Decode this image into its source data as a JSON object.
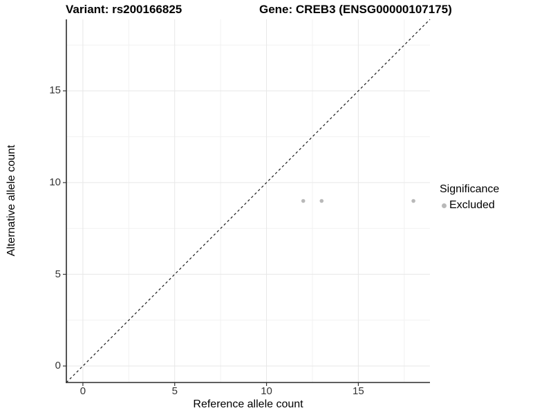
{
  "titles": {
    "variant": "Variant: rs200166825",
    "gene": "Gene: CREB3 (ENSG00000107175)"
  },
  "legend": {
    "title": "Significance",
    "items": [
      {
        "label": "Excluded",
        "color": "#b9b9b9"
      }
    ]
  },
  "chart_data": {
    "type": "scatter",
    "title": "Variant: rs200166825   Gene: CREB3 (ENSG00000107175)",
    "xlabel": "Reference allele count",
    "ylabel": "Alternative allele count",
    "series": [
      {
        "name": "Excluded",
        "color": "#b9b9b9",
        "points": [
          {
            "x": 12,
            "y": 9
          },
          {
            "x": 13,
            "y": 9
          },
          {
            "x": 18,
            "y": 9
          }
        ]
      }
    ],
    "xticks": [
      0,
      5,
      10,
      15
    ],
    "yticks": [
      0,
      5,
      10,
      15
    ],
    "minor_ticks": [
      2.5,
      7.5,
      12.5,
      17.5
    ],
    "xlim": [
      -0.9,
      18.9
    ],
    "ylim": [
      -0.9,
      18.9
    ],
    "identity_line": true,
    "grid": true,
    "legend_position": "right",
    "colors": {
      "major_grid": "#e7e7e7",
      "minor_grid": "#f1f1f1",
      "axis_line": "#2a2a2a",
      "tick_mark": "#333333",
      "identity_line": "#1a1a1a",
      "point": "#b9b9b9"
    }
  }
}
